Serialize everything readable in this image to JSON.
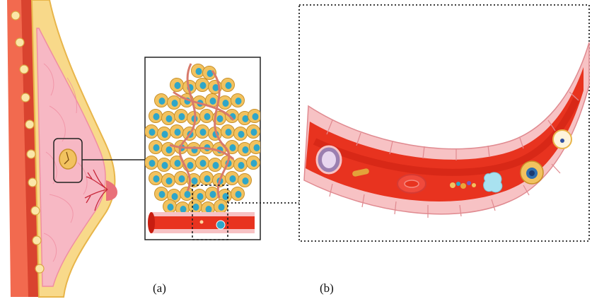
{
  "captions": {
    "a": "(a)",
    "b": "(b)"
  },
  "colors": {
    "skin": "#f26a4f",
    "skin_dark": "#d9432f",
    "fat": "#f8d98a",
    "fat_line": "#e8b54a",
    "breast_tissue": "#f7b8c4",
    "breast_lines": "#f08ea2",
    "tumor_cell": "#f2c25f",
    "tumor_cell_edge": "#c8902a",
    "nucleus": "#2fa6c8",
    "vessel_red": "#e8331f",
    "vessel_red_dark": "#c81d10",
    "endothelium": "#f7c2c4",
    "endothelium_edge": "#e08a90",
    "frame_dash": "#222222"
  },
  "panels": [
    "breast-illustration",
    "tumor-inset",
    "vessel-closeup"
  ]
}
